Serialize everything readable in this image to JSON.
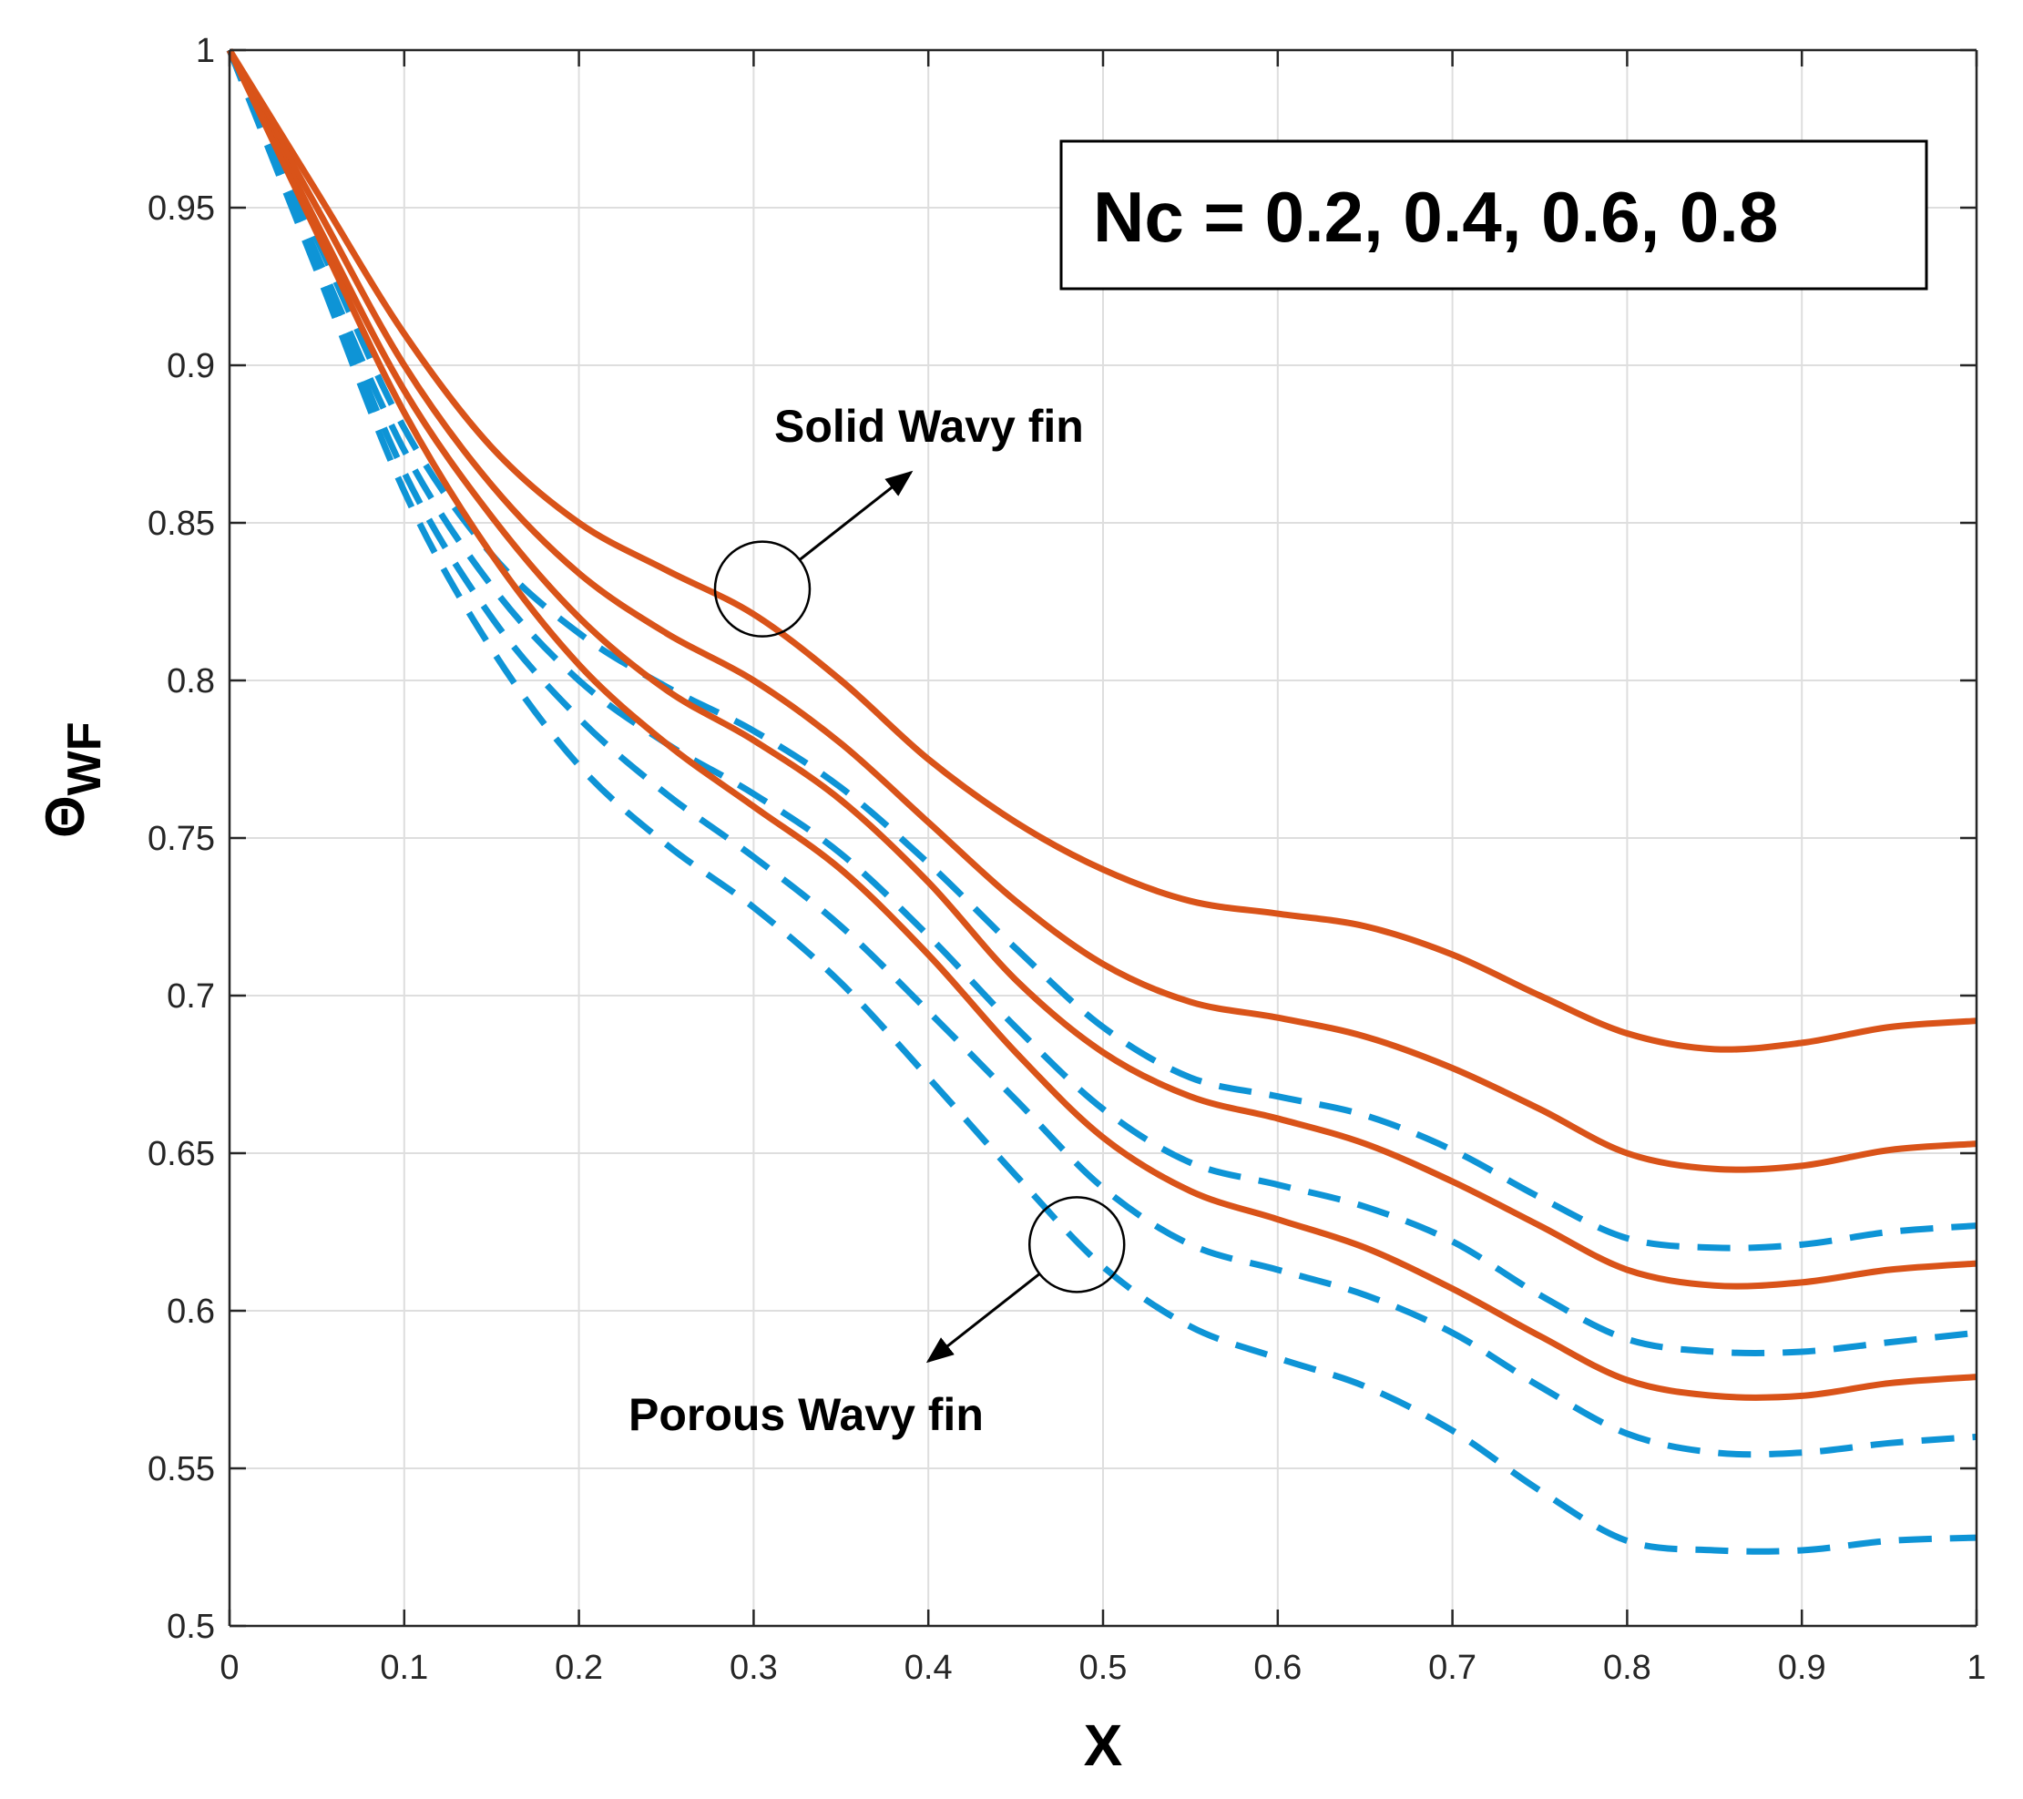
{
  "chart_data": {
    "type": "line",
    "title": "",
    "xlabel": "X",
    "ylabel_main": "Θ",
    "ylabel_sub": "WF",
    "xlim": [
      0,
      1
    ],
    "ylim": [
      0.5,
      1
    ],
    "xticks": [
      0,
      0.1,
      0.2,
      0.3,
      0.4,
      0.5,
      0.6,
      0.7,
      0.8,
      0.9,
      1
    ],
    "xtick_labels": [
      "0",
      "0.1",
      "0.2",
      "0.3",
      "0.4",
      "0.5",
      "0.6",
      "0.7",
      "0.8",
      "0.9",
      "1"
    ],
    "yticks": [
      0.5,
      0.55,
      0.6,
      0.65,
      0.7,
      0.75,
      0.8,
      0.85,
      0.9,
      0.95,
      1
    ],
    "ytick_labels": [
      "0.5",
      "0.55",
      "0.6",
      "0.65",
      "0.7",
      "0.75",
      "0.8",
      "0.85",
      "0.9",
      "0.95",
      "1"
    ],
    "grid": true,
    "legend_box_text": "Nc = 0.2, 0.4, 0.6, 0.8",
    "annotations": [
      {
        "text": "Solid Wavy fin",
        "circle_at": [
          0.305,
          0.829
        ],
        "arrow_to": [
          0.39,
          0.866
        ]
      },
      {
        "text": "Porous Wavy fin",
        "circle_at": [
          0.485,
          0.621
        ],
        "arrow_to": [
          0.4,
          0.584
        ]
      }
    ],
    "colors": {
      "solid": "#D95319",
      "porous": "#0E94D6",
      "grid": "#DEDEDE",
      "axis": "#262626"
    },
    "x": [
      0,
      0.05,
      0.1,
      0.15,
      0.2,
      0.25,
      0.3,
      0.35,
      0.4,
      0.45,
      0.5,
      0.55,
      0.6,
      0.65,
      0.7,
      0.75,
      0.8,
      0.85,
      0.9,
      0.95,
      1.0
    ],
    "series": [
      {
        "name": "Solid Wavy fin, Nc = 0.2",
        "style": "solid",
        "values": [
          1.0,
          0.955,
          0.91,
          0.874,
          0.85,
          0.835,
          0.821,
          0.8,
          0.775,
          0.755,
          0.74,
          0.73,
          0.726,
          0.722,
          0.713,
          0.7,
          0.688,
          0.683,
          0.685,
          0.69,
          0.692
        ]
      },
      {
        "name": "Solid Wavy fin, Nc = 0.4",
        "style": "solid",
        "values": [
          1.0,
          0.95,
          0.9,
          0.862,
          0.834,
          0.815,
          0.8,
          0.78,
          0.755,
          0.73,
          0.71,
          0.698,
          0.693,
          0.687,
          0.677,
          0.664,
          0.65,
          0.645,
          0.646,
          0.651,
          0.653
        ]
      },
      {
        "name": "Solid Wavy fin, Nc = 0.6",
        "style": "solid",
        "values": [
          1.0,
          0.945,
          0.892,
          0.852,
          0.82,
          0.797,
          0.781,
          0.762,
          0.736,
          0.705,
          0.682,
          0.668,
          0.661,
          0.653,
          0.641,
          0.627,
          0.613,
          0.608,
          0.609,
          0.613,
          0.615
        ]
      },
      {
        "name": "Solid Wavy fin, Nc = 0.8",
        "style": "solid",
        "values": [
          1.0,
          0.942,
          0.885,
          0.84,
          0.805,
          0.78,
          0.76,
          0.74,
          0.713,
          0.682,
          0.655,
          0.638,
          0.629,
          0.62,
          0.607,
          0.592,
          0.578,
          0.573,
          0.573,
          0.577,
          0.579
        ]
      },
      {
        "name": "Porous Wavy fin, Nc = 0.2",
        "style": "dashed",
        "values": [
          1.0,
          0.94,
          0.88,
          0.84,
          0.815,
          0.798,
          0.784,
          0.766,
          0.742,
          0.715,
          0.69,
          0.674,
          0.668,
          0.662,
          0.651,
          0.636,
          0.623,
          0.62,
          0.621,
          0.625,
          0.627
        ]
      },
      {
        "name": "Porous Wavy fin, Nc = 0.4",
        "style": "dashed",
        "values": [
          1.0,
          0.935,
          0.873,
          0.83,
          0.8,
          0.78,
          0.764,
          0.745,
          0.719,
          0.69,
          0.664,
          0.647,
          0.64,
          0.633,
          0.622,
          0.605,
          0.591,
          0.587,
          0.587,
          0.59,
          0.593
        ]
      },
      {
        "name": "Porous Wavy fin, Nc = 0.6",
        "style": "dashed",
        "values": [
          1.0,
          0.933,
          0.866,
          0.82,
          0.788,
          0.764,
          0.744,
          0.722,
          0.695,
          0.667,
          0.639,
          0.621,
          0.613,
          0.605,
          0.593,
          0.576,
          0.561,
          0.555,
          0.555,
          0.558,
          0.56
        ]
      },
      {
        "name": "Porous Wavy fin, Nc = 0.8",
        "style": "dashed",
        "values": [
          1.0,
          0.93,
          0.86,
          0.81,
          0.773,
          0.748,
          0.728,
          0.704,
          0.674,
          0.643,
          0.614,
          0.595,
          0.585,
          0.576,
          0.562,
          0.543,
          0.527,
          0.524,
          0.524,
          0.527,
          0.528
        ]
      }
    ]
  }
}
